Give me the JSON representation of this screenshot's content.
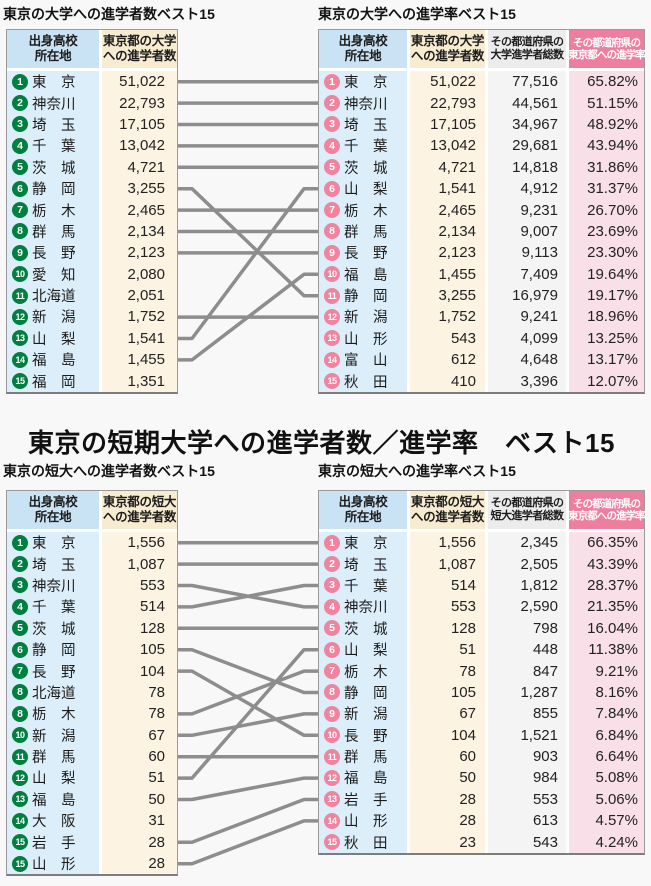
{
  "main_title": "東京の短期大学への進学者数／進学率　ベスト15",
  "colors": {
    "green_badge": "#008040",
    "pink_badge": "#f0849f",
    "header_blue": "#c9e2f4",
    "header_cream": "#f8ecd0",
    "header_gray": "#ececec",
    "header_pink": "#ee7e9f",
    "cell_blue": "#dceefa",
    "cell_cream": "#fdf3e2",
    "cell_gray": "#f4f4f4",
    "cell_pink": "#f8dfe8",
    "connector_gray": "#8d8d8d",
    "background": "#f8f8f8"
  },
  "chart_data": [
    {
      "type": "table",
      "id": "univ-count",
      "title": "東京の大学への進学者数ベスト15",
      "badge_color": "#008040",
      "headers": [
        [
          "出身高校",
          "所在地"
        ],
        [
          "東京都の大学",
          "への進学者数"
        ]
      ],
      "columns": [
        "rank",
        "prefecture",
        "tokyo_univ_entrants"
      ],
      "rows": [
        [
          "1",
          "東　京",
          "51,022"
        ],
        [
          "2",
          "神奈川",
          "22,793"
        ],
        [
          "3",
          "埼　玉",
          "17,105"
        ],
        [
          "4",
          "千　葉",
          "13,042"
        ],
        [
          "5",
          "茨　城",
          "4,721"
        ],
        [
          "6",
          "静　岡",
          "3,255"
        ],
        [
          "7",
          "栃　木",
          "2,465"
        ],
        [
          "8",
          "群　馬",
          "2,134"
        ],
        [
          "9",
          "長　野",
          "2,123"
        ],
        [
          "10",
          "愛　知",
          "2,080"
        ],
        [
          "11",
          "北海道",
          "2,051"
        ],
        [
          "12",
          "新　潟",
          "1,752"
        ],
        [
          "13",
          "山　梨",
          "1,541"
        ],
        [
          "14",
          "福　島",
          "1,455"
        ],
        [
          "15",
          "福　岡",
          "1,351"
        ]
      ]
    },
    {
      "type": "table",
      "id": "univ-rate",
      "title": "東京の大学への進学率ベスト15",
      "badge_color": "#f0849f",
      "headers": [
        [
          "出身高校",
          "所在地"
        ],
        [
          "東京都の大学",
          "への進学者数"
        ],
        [
          "その都道府県の",
          "大学進学者総数"
        ],
        [
          "その都道府県の",
          "東京都への進学率"
        ]
      ],
      "columns": [
        "rank",
        "prefecture",
        "tokyo_univ_entrants",
        "total_univ_entrants",
        "rate_to_tokyo"
      ],
      "rows": [
        [
          "1",
          "東　京",
          "51,022",
          "77,516",
          "65.82%"
        ],
        [
          "2",
          "神奈川",
          "22,793",
          "44,561",
          "51.15%"
        ],
        [
          "3",
          "埼　玉",
          "17,105",
          "34,967",
          "48.92%"
        ],
        [
          "4",
          "千　葉",
          "13,042",
          "29,681",
          "43.94%"
        ],
        [
          "5",
          "茨　城",
          "4,721",
          "14,818",
          "31.86%"
        ],
        [
          "6",
          "山　梨",
          "1,541",
          "4,912",
          "31.37%"
        ],
        [
          "7",
          "栃　木",
          "2,465",
          "9,231",
          "26.70%"
        ],
        [
          "8",
          "群　馬",
          "2,134",
          "9,007",
          "23.69%"
        ],
        [
          "9",
          "長　野",
          "2,123",
          "9,113",
          "23.30%"
        ],
        [
          "10",
          "福　島",
          "1,455",
          "7,409",
          "19.64%"
        ],
        [
          "11",
          "静　岡",
          "3,255",
          "16,979",
          "19.17%"
        ],
        [
          "12",
          "新　潟",
          "1,752",
          "9,241",
          "18.96%"
        ],
        [
          "13",
          "山　形",
          "543",
          "4,099",
          "13.25%"
        ],
        [
          "14",
          "富　山",
          "612",
          "4,648",
          "13.17%"
        ],
        [
          "15",
          "秋　田",
          "410",
          "3,396",
          "12.07%"
        ]
      ]
    },
    {
      "type": "table",
      "id": "jc-count",
      "title": "東京の短大への進学者数ベスト15",
      "badge_color": "#008040",
      "headers": [
        [
          "出身高校",
          "所在地"
        ],
        [
          "東京都の短大",
          "への進学者数"
        ]
      ],
      "columns": [
        "rank",
        "prefecture",
        "tokyo_jc_entrants"
      ],
      "rows": [
        [
          "1",
          "東　京",
          "1,556"
        ],
        [
          "2",
          "埼　玉",
          "1,087"
        ],
        [
          "3",
          "神奈川",
          "553"
        ],
        [
          "4",
          "千　葉",
          "514"
        ],
        [
          "5",
          "茨　城",
          "128"
        ],
        [
          "6",
          "静　岡",
          "105"
        ],
        [
          "7",
          "長　野",
          "104"
        ],
        [
          "8",
          "北海道",
          "78"
        ],
        [
          "8",
          "栃　木",
          "78"
        ],
        [
          "10",
          "新　潟",
          "67"
        ],
        [
          "11",
          "群　馬",
          "60"
        ],
        [
          "12",
          "山　梨",
          "51"
        ],
        [
          "13",
          "福　島",
          "50"
        ],
        [
          "14",
          "大　阪",
          "31"
        ],
        [
          "15",
          "岩　手",
          "28"
        ],
        [
          "15",
          "山　形",
          "28"
        ]
      ]
    },
    {
      "type": "table",
      "id": "jc-rate",
      "title": "東京の短大への進学率ベスト15",
      "badge_color": "#f0849f",
      "headers": [
        [
          "出身高校",
          "所在地"
        ],
        [
          "東京都の短大",
          "への進学者数"
        ],
        [
          "その都道府県の",
          "短大進学者総数"
        ],
        [
          "その都道府県の",
          "東京都への進学率"
        ]
      ],
      "columns": [
        "rank",
        "prefecture",
        "tokyo_jc_entrants",
        "total_jc_entrants",
        "rate_to_tokyo"
      ],
      "rows": [
        [
          "1",
          "東　京",
          "1,556",
          "2,345",
          "66.35%"
        ],
        [
          "2",
          "埼　玉",
          "1,087",
          "2,505",
          "43.39%"
        ],
        [
          "3",
          "千　葉",
          "514",
          "1,812",
          "28.37%"
        ],
        [
          "4",
          "神奈川",
          "553",
          "2,590",
          "21.35%"
        ],
        [
          "5",
          "茨　城",
          "128",
          "798",
          "16.04%"
        ],
        [
          "6",
          "山　梨",
          "51",
          "448",
          "11.38%"
        ],
        [
          "7",
          "栃　木",
          "78",
          "847",
          "9.21%"
        ],
        [
          "8",
          "静　岡",
          "105",
          "1,287",
          "8.16%"
        ],
        [
          "9",
          "新　潟",
          "67",
          "855",
          "7.84%"
        ],
        [
          "10",
          "長　野",
          "104",
          "1,521",
          "6.84%"
        ],
        [
          "11",
          "群　馬",
          "60",
          "903",
          "6.64%"
        ],
        [
          "12",
          "福　島",
          "50",
          "984",
          "5.08%"
        ],
        [
          "13",
          "岩　手",
          "28",
          "553",
          "5.06%"
        ],
        [
          "14",
          "山　形",
          "28",
          "613",
          "4.57%"
        ],
        [
          "15",
          "秋　田",
          "23",
          "543",
          "4.24%"
        ]
      ]
    }
  ],
  "connections": {
    "univ": [
      [
        0,
        0
      ],
      [
        1,
        1
      ],
      [
        2,
        2
      ],
      [
        3,
        3
      ],
      [
        4,
        4
      ],
      [
        5,
        10
      ],
      [
        6,
        6
      ],
      [
        7,
        7
      ],
      [
        8,
        8
      ],
      [
        11,
        11
      ],
      [
        12,
        5
      ],
      [
        13,
        9
      ]
    ],
    "jc": [
      [
        0,
        0
      ],
      [
        1,
        1
      ],
      [
        2,
        3
      ],
      [
        3,
        2
      ],
      [
        4,
        4
      ],
      [
        5,
        7
      ],
      [
        6,
        9
      ],
      [
        8,
        6
      ],
      [
        9,
        8
      ],
      [
        10,
        10
      ],
      [
        11,
        5
      ],
      [
        12,
        11
      ],
      [
        14,
        12
      ],
      [
        15,
        13
      ]
    ]
  }
}
